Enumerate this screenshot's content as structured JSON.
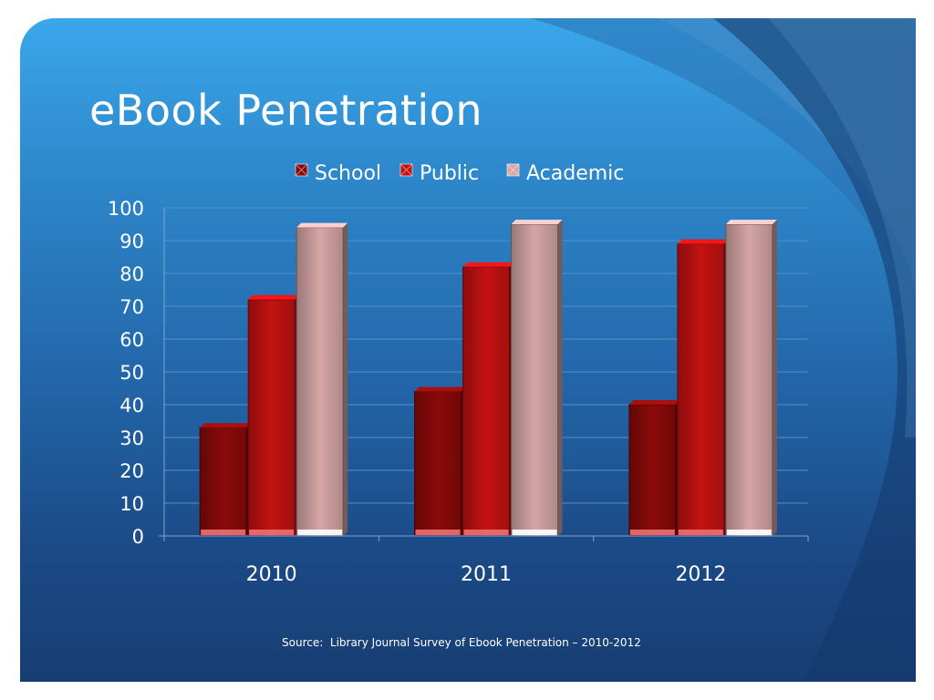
{
  "slide": {
    "title": "eBook Penetration",
    "source": "Source:  Library Journal Survey of Ebook Penetration – 2010-2012"
  },
  "colors": {
    "school": "#8b0a0a",
    "public": "#c41212",
    "academic": "#d6a6a6",
    "gridline": "#5a8fc2"
  },
  "chart_data": {
    "type": "bar",
    "categories": [
      "2010",
      "2011",
      "2012"
    ],
    "series": [
      {
        "name": "School",
        "values": [
          33,
          44,
          40
        ]
      },
      {
        "name": "Public",
        "values": [
          72,
          82,
          89
        ]
      },
      {
        "name": "Academic",
        "values": [
          94,
          95,
          95
        ]
      }
    ],
    "ylim": [
      0,
      100
    ],
    "yticks": [
      0,
      10,
      20,
      30,
      40,
      50,
      60,
      70,
      80,
      90,
      100
    ],
    "grid": true,
    "legend_position": "top"
  }
}
